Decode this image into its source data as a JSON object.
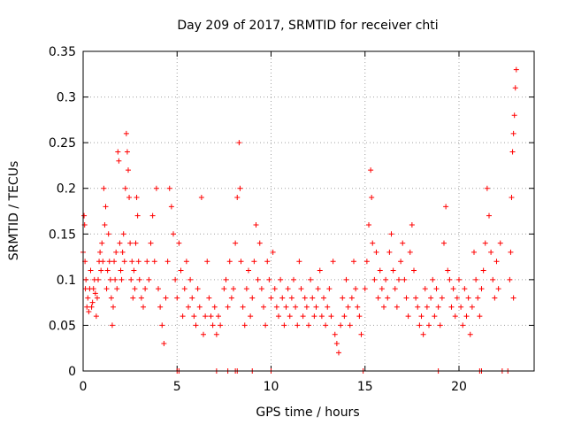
{
  "chart_data": {
    "type": "scatter",
    "title": "Day 209 of 2017, SRMTID for receiver chti",
    "xlabel": "GPS time / hours",
    "ylabel": "SRMTID / TECUs",
    "xlim": [
      0,
      24
    ],
    "ylim": [
      0,
      0.35
    ],
    "x_ticks": [
      0,
      5,
      10,
      15,
      20
    ],
    "x_tick_labels": [
      "0",
      "5",
      "10",
      "15",
      "20"
    ],
    "y_ticks": [
      0,
      0.05,
      0.1,
      0.15,
      0.2,
      0.25,
      0.3,
      0.35
    ],
    "y_tick_labels": [
      "0",
      "0.05",
      "0.1",
      "0.15",
      "0.2",
      "0.25",
      "0.3",
      "0.35"
    ],
    "grid": true,
    "marker": "plus",
    "color": "#ff0000",
    "baseline_points_y0": [
      5.0,
      5.1,
      7.1,
      7.7,
      8.1,
      8.2,
      9.0,
      10.0,
      14.9,
      18.9,
      21.1,
      21.2,
      22.3,
      22.6
    ],
    "series": [
      {
        "points": [
          [
            0.0,
            0.13
          ],
          [
            0.05,
            0.17
          ],
          [
            0.08,
            0.16
          ],
          [
            0.1,
            0.12
          ],
          [
            0.12,
            0.09
          ],
          [
            0.15,
            0.1
          ],
          [
            0.2,
            0.07
          ],
          [
            0.25,
            0.08
          ],
          [
            0.3,
            0.065
          ],
          [
            0.35,
            0.09
          ],
          [
            0.4,
            0.11
          ],
          [
            0.45,
            0.07
          ],
          [
            0.5,
            0.075
          ],
          [
            0.55,
            0.09
          ],
          [
            0.6,
            0.1
          ],
          [
            0.65,
            0.085
          ],
          [
            0.7,
            0.06
          ],
          [
            0.75,
            0.08
          ],
          [
            0.8,
            0.1
          ],
          [
            0.85,
            0.12
          ],
          [
            0.9,
            0.13
          ],
          [
            0.95,
            0.11
          ],
          [
            1.0,
            0.14
          ],
          [
            1.05,
            0.12
          ],
          [
            1.1,
            0.2
          ],
          [
            1.15,
            0.16
          ],
          [
            1.2,
            0.18
          ],
          [
            1.25,
            0.09
          ],
          [
            1.3,
            0.11
          ],
          [
            1.35,
            0.15
          ],
          [
            1.4,
            0.12
          ],
          [
            1.45,
            0.1
          ],
          [
            1.5,
            0.08
          ],
          [
            1.55,
            0.05
          ],
          [
            1.6,
            0.07
          ],
          [
            1.65,
            0.12
          ],
          [
            1.7,
            0.1
          ],
          [
            1.75,
            0.13
          ],
          [
            1.8,
            0.09
          ],
          [
            1.85,
            0.24
          ],
          [
            1.9,
            0.23
          ],
          [
            1.95,
            0.14
          ],
          [
            2.0,
            0.11
          ],
          [
            2.05,
            0.1
          ],
          [
            2.1,
            0.13
          ],
          [
            2.15,
            0.15
          ],
          [
            2.2,
            0.12
          ],
          [
            2.25,
            0.2
          ],
          [
            2.3,
            0.26
          ],
          [
            2.35,
            0.24
          ],
          [
            2.4,
            0.22
          ],
          [
            2.45,
            0.19
          ],
          [
            2.5,
            0.14
          ],
          [
            2.55,
            0.1
          ],
          [
            2.6,
            0.12
          ],
          [
            2.65,
            0.08
          ],
          [
            2.7,
            0.11
          ],
          [
            2.75,
            0.09
          ],
          [
            2.8,
            0.14
          ],
          [
            2.85,
            0.19
          ],
          [
            2.9,
            0.17
          ],
          [
            2.95,
            0.12
          ],
          [
            3.0,
            0.1
          ],
          [
            3.1,
            0.08
          ],
          [
            3.2,
            0.07
          ],
          [
            3.3,
            0.09
          ],
          [
            3.4,
            0.12
          ],
          [
            3.5,
            0.1
          ],
          [
            3.6,
            0.14
          ],
          [
            3.7,
            0.17
          ],
          [
            3.8,
            0.12
          ],
          [
            3.9,
            0.2
          ],
          [
            4.0,
            0.09
          ],
          [
            4.1,
            0.07
          ],
          [
            4.2,
            0.05
          ],
          [
            4.3,
            0.03
          ],
          [
            4.4,
            0.08
          ],
          [
            4.5,
            0.12
          ],
          [
            4.6,
            0.2
          ],
          [
            4.7,
            0.18
          ],
          [
            4.8,
            0.15
          ],
          [
            4.9,
            0.1
          ],
          [
            5.0,
            0.08
          ],
          [
            5.1,
            0.14
          ],
          [
            5.2,
            0.11
          ],
          [
            5.3,
            0.06
          ],
          [
            5.4,
            0.09
          ],
          [
            5.5,
            0.12
          ],
          [
            5.6,
            0.07
          ],
          [
            5.7,
            0.1
          ],
          [
            5.8,
            0.08
          ],
          [
            5.9,
            0.06
          ],
          [
            6.0,
            0.05
          ],
          [
            6.1,
            0.09
          ],
          [
            6.2,
            0.07
          ],
          [
            6.3,
            0.19
          ],
          [
            6.4,
            0.04
          ],
          [
            6.5,
            0.06
          ],
          [
            6.6,
            0.12
          ],
          [
            6.7,
            0.08
          ],
          [
            6.8,
            0.06
          ],
          [
            6.9,
            0.05
          ],
          [
            7.0,
            0.07
          ],
          [
            7.1,
            0.04
          ],
          [
            7.2,
            0.06
          ],
          [
            7.3,
            0.05
          ],
          [
            7.5,
            0.09
          ],
          [
            7.6,
            0.1
          ],
          [
            7.7,
            0.07
          ],
          [
            7.8,
            0.12
          ],
          [
            7.9,
            0.08
          ],
          [
            8.0,
            0.09
          ],
          [
            8.1,
            0.14
          ],
          [
            8.2,
            0.19
          ],
          [
            8.3,
            0.25
          ],
          [
            8.35,
            0.2
          ],
          [
            8.4,
            0.12
          ],
          [
            8.5,
            0.07
          ],
          [
            8.6,
            0.05
          ],
          [
            8.7,
            0.09
          ],
          [
            8.8,
            0.11
          ],
          [
            8.9,
            0.06
          ],
          [
            9.0,
            0.08
          ],
          [
            9.1,
            0.12
          ],
          [
            9.2,
            0.16
          ],
          [
            9.3,
            0.1
          ],
          [
            9.4,
            0.14
          ],
          [
            9.5,
            0.09
          ],
          [
            9.6,
            0.07
          ],
          [
            9.7,
            0.05
          ],
          [
            9.8,
            0.12
          ],
          [
            9.9,
            0.1
          ],
          [
            10.0,
            0.08
          ],
          [
            10.1,
            0.13
          ],
          [
            10.2,
            0.09
          ],
          [
            10.3,
            0.07
          ],
          [
            10.4,
            0.06
          ],
          [
            10.5,
            0.1
          ],
          [
            10.6,
            0.08
          ],
          [
            10.7,
            0.05
          ],
          [
            10.8,
            0.07
          ],
          [
            10.9,
            0.09
          ],
          [
            11.0,
            0.06
          ],
          [
            11.1,
            0.08
          ],
          [
            11.2,
            0.1
          ],
          [
            11.3,
            0.07
          ],
          [
            11.4,
            0.05
          ],
          [
            11.5,
            0.12
          ],
          [
            11.6,
            0.09
          ],
          [
            11.7,
            0.06
          ],
          [
            11.8,
            0.08
          ],
          [
            11.9,
            0.07
          ],
          [
            12.0,
            0.05
          ],
          [
            12.1,
            0.1
          ],
          [
            12.2,
            0.08
          ],
          [
            12.3,
            0.06
          ],
          [
            12.4,
            0.07
          ],
          [
            12.5,
            0.09
          ],
          [
            12.6,
            0.11
          ],
          [
            12.7,
            0.06
          ],
          [
            12.8,
            0.08
          ],
          [
            12.9,
            0.05
          ],
          [
            13.0,
            0.07
          ],
          [
            13.1,
            0.09
          ],
          [
            13.2,
            0.06
          ],
          [
            13.3,
            0.12
          ],
          [
            13.4,
            0.04
          ],
          [
            13.5,
            0.03
          ],
          [
            13.6,
            0.02
          ],
          [
            13.7,
            0.05
          ],
          [
            13.8,
            0.08
          ],
          [
            13.9,
            0.06
          ],
          [
            14.0,
            0.1
          ],
          [
            14.1,
            0.07
          ],
          [
            14.2,
            0.05
          ],
          [
            14.3,
            0.08
          ],
          [
            14.4,
            0.12
          ],
          [
            14.5,
            0.09
          ],
          [
            14.6,
            0.07
          ],
          [
            14.7,
            0.06
          ],
          [
            14.8,
            0.04
          ],
          [
            15.0,
            0.09
          ],
          [
            15.1,
            0.12
          ],
          [
            15.2,
            0.16
          ],
          [
            15.3,
            0.22
          ],
          [
            15.35,
            0.19
          ],
          [
            15.4,
            0.14
          ],
          [
            15.5,
            0.1
          ],
          [
            15.6,
            0.13
          ],
          [
            15.7,
            0.08
          ],
          [
            15.8,
            0.11
          ],
          [
            15.9,
            0.09
          ],
          [
            16.0,
            0.07
          ],
          [
            16.1,
            0.1
          ],
          [
            16.2,
            0.08
          ],
          [
            16.3,
            0.13
          ],
          [
            16.4,
            0.15
          ],
          [
            16.5,
            0.11
          ],
          [
            16.6,
            0.09
          ],
          [
            16.7,
            0.07
          ],
          [
            16.8,
            0.1
          ],
          [
            16.9,
            0.12
          ],
          [
            17.0,
            0.14
          ],
          [
            17.1,
            0.1
          ],
          [
            17.2,
            0.08
          ],
          [
            17.3,
            0.06
          ],
          [
            17.4,
            0.13
          ],
          [
            17.5,
            0.16
          ],
          [
            17.6,
            0.11
          ],
          [
            17.7,
            0.08
          ],
          [
            17.8,
            0.07
          ],
          [
            17.9,
            0.05
          ],
          [
            18.0,
            0.06
          ],
          [
            18.1,
            0.04
          ],
          [
            18.2,
            0.09
          ],
          [
            18.3,
            0.07
          ],
          [
            18.4,
            0.05
          ],
          [
            18.5,
            0.08
          ],
          [
            18.6,
            0.1
          ],
          [
            18.7,
            0.06
          ],
          [
            18.8,
            0.09
          ],
          [
            18.9,
            0.07
          ],
          [
            19.0,
            0.05
          ],
          [
            19.1,
            0.08
          ],
          [
            19.2,
            0.14
          ],
          [
            19.3,
            0.18
          ],
          [
            19.4,
            0.11
          ],
          [
            19.5,
            0.1
          ],
          [
            19.6,
            0.07
          ],
          [
            19.7,
            0.09
          ],
          [
            19.8,
            0.06
          ],
          [
            19.9,
            0.08
          ],
          [
            20.0,
            0.1
          ],
          [
            20.1,
            0.07
          ],
          [
            20.2,
            0.05
          ],
          [
            20.3,
            0.09
          ],
          [
            20.4,
            0.06
          ],
          [
            20.5,
            0.08
          ],
          [
            20.6,
            0.04
          ],
          [
            20.7,
            0.07
          ],
          [
            20.8,
            0.13
          ],
          [
            20.9,
            0.1
          ],
          [
            21.0,
            0.08
          ],
          [
            21.1,
            0.06
          ],
          [
            21.2,
            0.09
          ],
          [
            21.3,
            0.11
          ],
          [
            21.4,
            0.14
          ],
          [
            21.5,
            0.2
          ],
          [
            21.6,
            0.17
          ],
          [
            21.7,
            0.13
          ],
          [
            21.8,
            0.1
          ],
          [
            21.9,
            0.08
          ],
          [
            22.0,
            0.12
          ],
          [
            22.1,
            0.09
          ],
          [
            22.2,
            0.14
          ],
          [
            22.7,
            0.1
          ],
          [
            22.75,
            0.13
          ],
          [
            22.8,
            0.19
          ],
          [
            22.85,
            0.24
          ],
          [
            22.9,
            0.26
          ],
          [
            22.95,
            0.28
          ],
          [
            23.0,
            0.31
          ],
          [
            23.05,
            0.33
          ],
          [
            22.9,
            0.08
          ]
        ]
      }
    ]
  }
}
